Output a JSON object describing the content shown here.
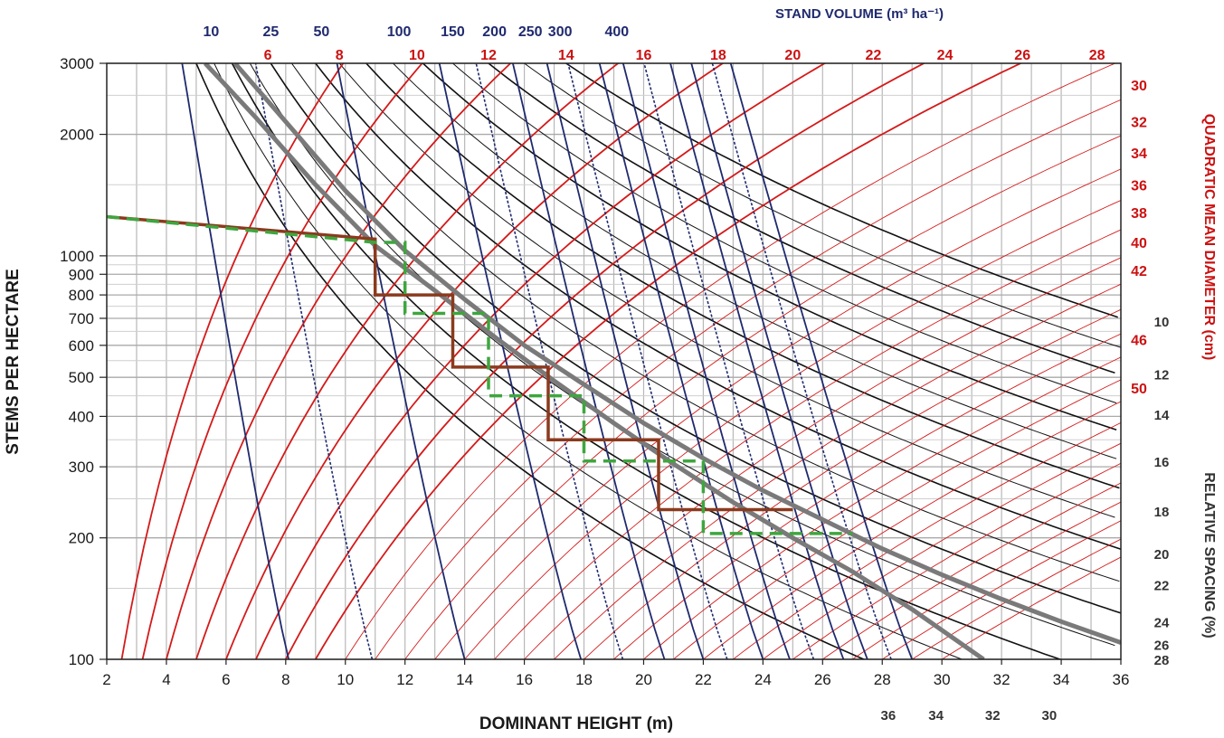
{
  "chart_data": {
    "type": "line",
    "xlabel": "DOMINANT HEIGHT (m)",
    "ylabel": "STEMS PER HECTARE",
    "xlim": [
      2,
      36
    ],
    "ylim": [
      100,
      3000
    ],
    "y_scale": "log",
    "grid": true,
    "x_ticks": [
      2,
      4,
      6,
      8,
      10,
      12,
      14,
      16,
      18,
      20,
      22,
      24,
      26,
      28,
      30,
      32,
      34,
      36
    ],
    "y_ticks": [
      100,
      200,
      300,
      400,
      500,
      600,
      700,
      800,
      900,
      1000,
      2000,
      3000
    ],
    "stand_volume": {
      "title": "STAND VOLUME (m³ ha⁻¹)",
      "color": "#1f2a6e",
      "labels": [
        "10",
        "25",
        "50",
        "100",
        "150",
        "200",
        "250",
        "300",
        "400"
      ],
      "label_x": [
        5.5,
        7.5,
        9.2,
        11.8,
        13.6,
        15.0,
        16.2,
        17.2,
        19.1
      ],
      "isolines_bottom_x": [
        8.1,
        10.9,
        14.0,
        17.9,
        19.3,
        20.7,
        22.0,
        22.8,
        24.0,
        24.9,
        25.7,
        26.7,
        27.5,
        28.3,
        29.0
      ]
    },
    "qmd": {
      "title": "QUADRATIC MEAN DIAMETER (cm)",
      "color": "#cc1111",
      "top_labels": [
        "6",
        "8",
        "10",
        "12",
        "14",
        "16",
        "18",
        "20",
        "22",
        "24",
        "26",
        "28"
      ],
      "top_labels_x": [
        7.4,
        9.8,
        12.4,
        14.8,
        17.4,
        20.0,
        22.5,
        25.0,
        27.7,
        30.1,
        32.7,
        35.2
      ],
      "right_labels": [
        "30",
        "32",
        "34",
        "36",
        "38",
        "40",
        "42",
        "46",
        "50"
      ],
      "right_labels_y": [
        2650,
        2150,
        1800,
        1500,
        1280,
        1080,
        920,
        620,
        470
      ],
      "isolines_bottom_x": [
        2.5,
        3.2,
        4.0,
        5.0,
        6.0,
        7.0,
        8.0,
        9.0,
        10.0,
        11.0,
        12.0,
        13.0,
        14.0,
        15.0,
        16.0,
        17.0,
        18.0,
        19.0,
        20.0,
        21.0,
        22.0,
        23.0,
        24.0,
        25.0,
        26.0,
        27.0,
        28.0,
        29.0,
        30.0
      ]
    },
    "relative_spacing": {
      "title": "RELATIVE SPACING (%)",
      "color": "#333333",
      "right_labels": [
        "10",
        "12",
        "14",
        "16",
        "18",
        "20",
        "22",
        "24",
        "26",
        "28"
      ],
      "right_labels_y": [
        690,
        510,
        405,
        310,
        233,
        183,
        153,
        124,
        109,
        100
      ],
      "bottom_labels": [
        "36",
        "34",
        "32",
        "30"
      ],
      "bottom_labels_x": [
        28.2,
        29.8,
        31.7,
        33.6
      ],
      "isolines_left_x": [
        5.0,
        5.6,
        6.2,
        6.8,
        7.5,
        8.2,
        9.0,
        9.8,
        10.7,
        11.6,
        12.6,
        13.6,
        14.8,
        16.0,
        17.4
      ]
    },
    "thick_gray_lines": {
      "color": "#7a7a7a",
      "series": [
        {
          "name": "",
          "x": [
            5.3,
            7.0,
            9.0,
            11.0,
            13.0,
            15.0,
            17.0,
            19.0,
            21.0,
            23.0,
            25.0,
            27.0,
            29.0,
            31.4
          ],
          "y": [
            3000,
            2200,
            1500,
            1060,
            820,
            630,
            490,
            385,
            305,
            245,
            200,
            165,
            133,
            100
          ]
        },
        {
          "name": "",
          "x": [
            6.3,
            8.0,
            10.0,
            12.0,
            14.0,
            16.0,
            18.0,
            20.0,
            22.0,
            24.0,
            26.0,
            28.0,
            30.0,
            32.0,
            34.0,
            36.0
          ],
          "y": [
            3000,
            2150,
            1450,
            1030,
            780,
            600,
            480,
            385,
            315,
            262,
            222,
            188,
            162,
            141,
            124,
            110
          ]
        }
      ]
    },
    "thinning_regimes": [
      {
        "name": "",
        "color": "#8b3a1e",
        "dashed": false,
        "x": [
          2.0,
          11.0,
          11.0,
          13.6,
          13.6,
          16.8,
          16.8,
          20.5,
          20.5,
          25.0
        ],
        "y": [
          1250,
          1100,
          800,
          800,
          530,
          530,
          350,
          350,
          235,
          235
        ]
      },
      {
        "name": "",
        "color": "#3ea63e",
        "dashed": true,
        "x": [
          2.0,
          11.0,
          12.0,
          12.0,
          14.8,
          14.8,
          18.0,
          18.0,
          22.0,
          22.0,
          27.0
        ],
        "y": [
          1250,
          1080,
          1080,
          720,
          720,
          450,
          450,
          310,
          310,
          205,
          205
        ]
      }
    ]
  }
}
